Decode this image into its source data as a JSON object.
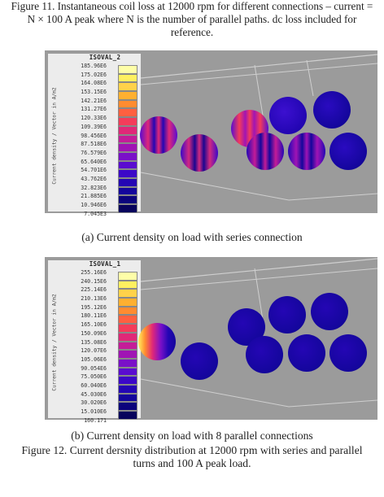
{
  "figure11_caption": "Figure 11. Instantaneous coil loss at 12000 rpm for different connections – current = N × 100 A peak where N is the number of parallel paths. dc loss included for reference.",
  "panel_a": {
    "legend_title": "ISOVAL_2",
    "axis_label": "Current density / Vector in A/m2",
    "levels": [
      "185.96E6",
      "175.02E6",
      "164.08E6",
      "153.15E6",
      "142.21E6",
      "131.27E6",
      "120.33E6",
      "109.39E6",
      "98.456E6",
      "87.518E6",
      "76.579E6",
      "65.640E6",
      "54.701E6",
      "43.762E6",
      "32.823E6",
      "21.885E6",
      "10.946E6",
      "7.045E3"
    ],
    "caption": "(a) Current density on load with series connection"
  },
  "panel_b": {
    "legend_title": "ISOVAL_1",
    "axis_label": "Current density / Vector in A/m2",
    "levels": [
      "255.16E6",
      "240.15E6",
      "225.14E6",
      "210.13E6",
      "195.12E6",
      "180.11E6",
      "165.10E6",
      "150.09E6",
      "135.08E6",
      "120.07E6",
      "105.06E6",
      "90.054E6",
      "75.050E6",
      "60.040E6",
      "45.030E6",
      "30.020E6",
      "15.010E6",
      "160.171"
    ],
    "caption": "(b) Current density on load with 8 parallel connections"
  },
  "figure12_caption": "Figure 12. Current dersnity distribution at 12000 rpm with series and parallel turns and 100 A peak load.",
  "colors": {
    "panel_bg": "#9b9b9b",
    "scale": [
      "#fefea8",
      "#fff060",
      "#ffd24a",
      "#ffb030",
      "#ff8c30",
      "#ff6040",
      "#f43c5a",
      "#e02878",
      "#c41c98",
      "#a014b4",
      "#7a10c8",
      "#5a0cd0",
      "#3c08c8",
      "#2406b4",
      "#14069c",
      "#0c047c",
      "#08035c"
    ]
  }
}
